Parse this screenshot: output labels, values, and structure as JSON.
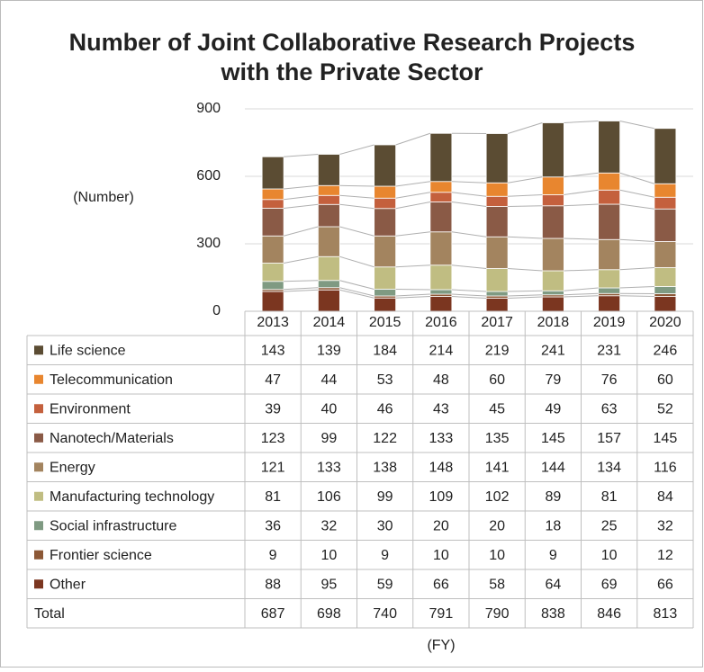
{
  "chart_data": {
    "type": "stacked_bar",
    "title": [
      "Number of Joint Collaborative Research Projects",
      "with the Private Sector"
    ],
    "y_label": "(Number)",
    "x_label": "(FY)",
    "categories": [
      "2013",
      "2014",
      "2015",
      "2016",
      "2017",
      "2018",
      "2019",
      "2020"
    ],
    "series": [
      {
        "name": "Life science",
        "color": "#5b4c33",
        "values": [
          143,
          139,
          184,
          214,
          219,
          241,
          231,
          246
        ]
      },
      {
        "name": "Telecommunication",
        "color": "#e8862f",
        "values": [
          47,
          44,
          53,
          48,
          60,
          79,
          76,
          60
        ]
      },
      {
        "name": "Environment",
        "color": "#c4603d",
        "values": [
          39,
          40,
          46,
          43,
          45,
          49,
          63,
          52
        ]
      },
      {
        "name": "Nanotech/Materials",
        "color": "#8a5a46",
        "values": [
          123,
          99,
          122,
          133,
          135,
          145,
          157,
          145
        ]
      },
      {
        "name": "Energy",
        "color": "#a3845f",
        "values": [
          121,
          133,
          138,
          148,
          141,
          144,
          134,
          116
        ]
      },
      {
        "name": "Manufacturing technology",
        "color": "#c0bd82",
        "values": [
          81,
          106,
          99,
          109,
          102,
          89,
          81,
          84
        ]
      },
      {
        "name": "Social infrastructure",
        "color": "#7f9a82",
        "values": [
          36,
          32,
          30,
          20,
          20,
          18,
          25,
          32
        ]
      },
      {
        "name": "Frontier science",
        "color": "#8c5836",
        "values": [
          9,
          10,
          9,
          10,
          10,
          9,
          10,
          12
        ]
      },
      {
        "name": "Other",
        "color": "#7b3620",
        "values": [
          88,
          95,
          59,
          66,
          58,
          64,
          69,
          66
        ]
      }
    ],
    "total_label": "Total",
    "totals": [
      687,
      698,
      740,
      791,
      790,
      838,
      846,
      813
    ],
    "ylim": [
      0,
      900
    ],
    "yticks": [
      0,
      300,
      600,
      900
    ],
    "grid": true
  }
}
